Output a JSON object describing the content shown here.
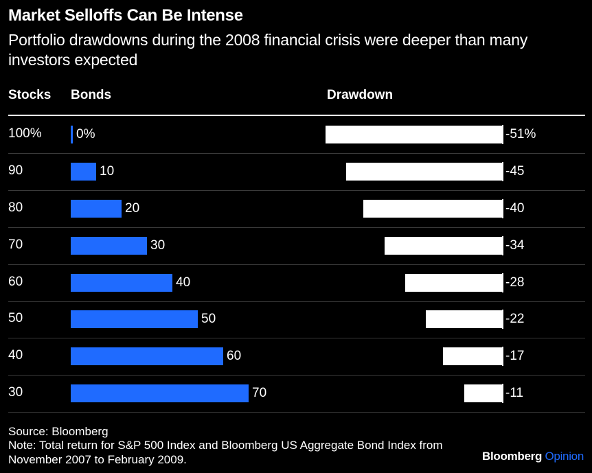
{
  "header": {
    "title": "Market Selloffs Can Be Intense",
    "subtitle": "Portfolio drawdowns during the 2008 financial crisis were deeper than many investors expected"
  },
  "columns": {
    "stocks": "Stocks",
    "bonds": "Bonds",
    "drawdown": "Drawdown"
  },
  "chart_data": {
    "type": "bar",
    "title": "Market Selloffs Can Be Intense",
    "subtitle": "Portfolio drawdowns during the 2008 financial crisis were deeper than many investors expected",
    "categories": [
      "100%",
      "90",
      "80",
      "70",
      "60",
      "50",
      "40",
      "30"
    ],
    "series": [
      {
        "name": "Bonds",
        "values": [
          0,
          10,
          20,
          30,
          40,
          50,
          60,
          70
        ],
        "labels": [
          "0%",
          "10",
          "20",
          "30",
          "40",
          "50",
          "60",
          "70"
        ],
        "color": "#1f6bff"
      },
      {
        "name": "Drawdown",
        "values": [
          -51,
          -45,
          -40,
          -34,
          -28,
          -22,
          -17,
          -11
        ],
        "labels": [
          "-51%",
          "-45",
          "-40",
          "-34",
          "-28",
          "-22",
          "-17",
          "-11"
        ],
        "color": "#ffffff"
      }
    ],
    "grid": false,
    "legend": "none"
  },
  "footer": {
    "source": "Source: Bloomberg",
    "note": "Note: Total return for S&P 500 Index and Bloomberg US Aggregate Bond Index from November 2007 to February 2009.",
    "brand_main": "Bloomberg",
    "brand_accent": "Opinion"
  },
  "colors": {
    "background": "#000000",
    "bonds": "#1f6bff",
    "drawdown": "#ffffff"
  }
}
